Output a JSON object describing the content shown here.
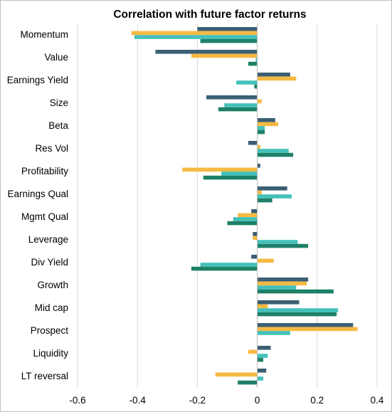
{
  "chart_data": {
    "type": "bar",
    "orientation": "horizontal",
    "title": "Correlation with future factor returns",
    "xlabel": "",
    "ylabel": "",
    "xlim": [
      -0.6,
      0.4
    ],
    "xticks": [
      -0.6,
      -0.4,
      -0.2,
      0,
      0.2,
      0.4
    ],
    "xtick_labels": [
      "-0.6",
      "-0.4",
      "-0.2",
      "0",
      "0.2",
      "0.4"
    ],
    "grid": "vertical major gridlines",
    "legend": "none",
    "categories": [
      "Momentum",
      "Value",
      "Earnings Yield",
      "Size",
      "Beta",
      "Res Vol",
      "Profitability",
      "Earnings Qual",
      "Mgmt Qual",
      "Leverage",
      "Div Yield",
      "Growth",
      "Mid cap",
      "Prospect",
      "Liquidity",
      "LT reversal"
    ],
    "series": [
      {
        "color": "#3b5f73",
        "values": [
          -0.2,
          -0.34,
          0.11,
          -0.17,
          0.06,
          -0.03,
          0.01,
          0.1,
          -0.02,
          -0.015,
          -0.02,
          0.17,
          0.14,
          0.32,
          0.045,
          0.03
        ]
      },
      {
        "color": "#f5b942",
        "values": [
          -0.42,
          -0.22,
          0.13,
          0.015,
          0.07,
          0.01,
          -0.25,
          0.015,
          -0.065,
          -0.015,
          0.055,
          0.165,
          0.035,
          0.335,
          -0.03,
          -0.14
        ]
      },
      {
        "color": "#43c1b9",
        "values": [
          -0.41,
          -0.005,
          -0.07,
          -0.11,
          0.025,
          0.105,
          -0.12,
          0.115,
          -0.08,
          0.135,
          -0.19,
          0.13,
          0.27,
          0.11,
          0.035,
          0.02
        ]
      },
      {
        "color": "#1d8067",
        "values": [
          -0.19,
          -0.03,
          -0.01,
          -0.13,
          0.025,
          0.12,
          -0.18,
          0.05,
          -0.1,
          0.17,
          -0.22,
          0.255,
          0.265,
          0.0,
          0.02,
          -0.065
        ]
      }
    ]
  }
}
